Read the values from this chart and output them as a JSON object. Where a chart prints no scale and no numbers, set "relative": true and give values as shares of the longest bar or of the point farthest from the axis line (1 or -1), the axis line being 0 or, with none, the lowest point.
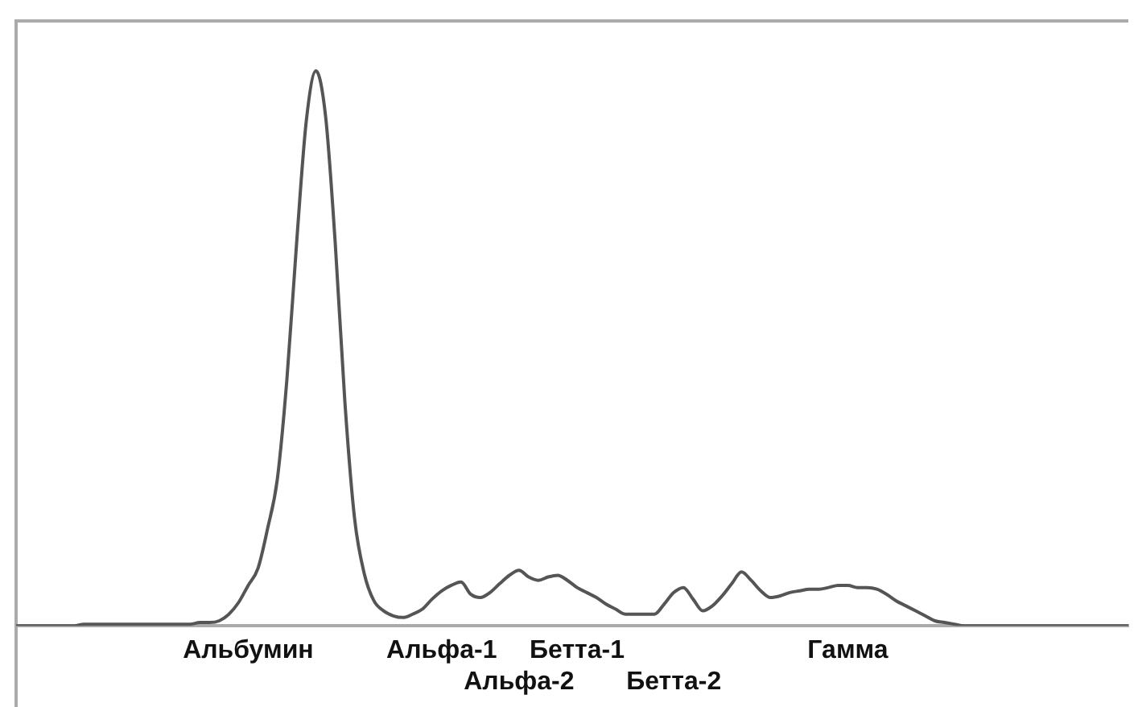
{
  "chart_data": {
    "type": "line",
    "relative": true,
    "color": "#555555",
    "marker": "none",
    "grid": false,
    "legend": false,
    "categories": [
      null,
      null,
      null,
      null,
      null,
      null,
      null,
      null,
      null,
      null,
      null,
      null,
      null,
      null,
      null,
      null,
      null,
      null,
      null,
      null,
      null,
      null,
      null,
      null,
      "Альбумин",
      null,
      null,
      null,
      null,
      null,
      null,
      null,
      null,
      null,
      null,
      null,
      null,
      null,
      null,
      null,
      null,
      null,
      null,
      null,
      "Альфа-1",
      null,
      null,
      null,
      null,
      null,
      null,
      null,
      "Альфа-2",
      null,
      null,
      null,
      null,
      null,
      "Бетта-1",
      null,
      null,
      null,
      null,
      null,
      null,
      null,
      null,
      null,
      "Бетта-2",
      null,
      null,
      null,
      null,
      null,
      null,
      null,
      null,
      null,
      null,
      null,
      null,
      null,
      null,
      null,
      null,
      null,
      "Гамма",
      null,
      null,
      null,
      null,
      null,
      null,
      null,
      null,
      null,
      null,
      null,
      null,
      null,
      null,
      null,
      null,
      null,
      null,
      null,
      null,
      null,
      null,
      null,
      null,
      null,
      null,
      null,
      null,
      null
    ],
    "values": [
      0,
      0,
      0,
      0,
      0,
      0,
      0,
      0.003,
      0.003,
      0.003,
      0.003,
      0.003,
      0.003,
      0.003,
      0.003,
      0.003,
      0.003,
      0.003,
      0.003,
      0.006,
      0.006,
      0.009,
      0.021,
      0.042,
      0.073,
      0.103,
      0.175,
      0.263,
      0.444,
      0.689,
      0.909,
      1,
      0.918,
      0.689,
      0.402,
      0.193,
      0.094,
      0.045,
      0.027,
      0.018,
      0.015,
      0.021,
      0.03,
      0.048,
      0.063,
      0.073,
      0.079,
      0.057,
      0.051,
      0.06,
      0.076,
      0.091,
      0.1,
      0.088,
      0.082,
      0.088,
      0.091,
      0.082,
      0.069,
      0.06,
      0.051,
      0.039,
      0.03,
      0.021,
      0.021,
      0.021,
      0.021,
      0.039,
      0.06,
      0.069,
      0.048,
      0.027,
      0.036,
      0.054,
      0.076,
      0.097,
      0.082,
      0.063,
      0.051,
      0.054,
      0.06,
      0.063,
      0.066,
      0.066,
      0.069,
      0.073,
      0.073,
      0.069,
      0.069,
      0.066,
      0.057,
      0.045,
      0.036,
      0.027,
      0.018,
      0.009,
      0.006,
      0.003,
      0,
      0,
      0,
      0,
      0,
      0,
      0,
      0,
      0,
      0,
      0,
      0,
      0,
      0,
      0,
      0,
      0,
      0
    ]
  }
}
